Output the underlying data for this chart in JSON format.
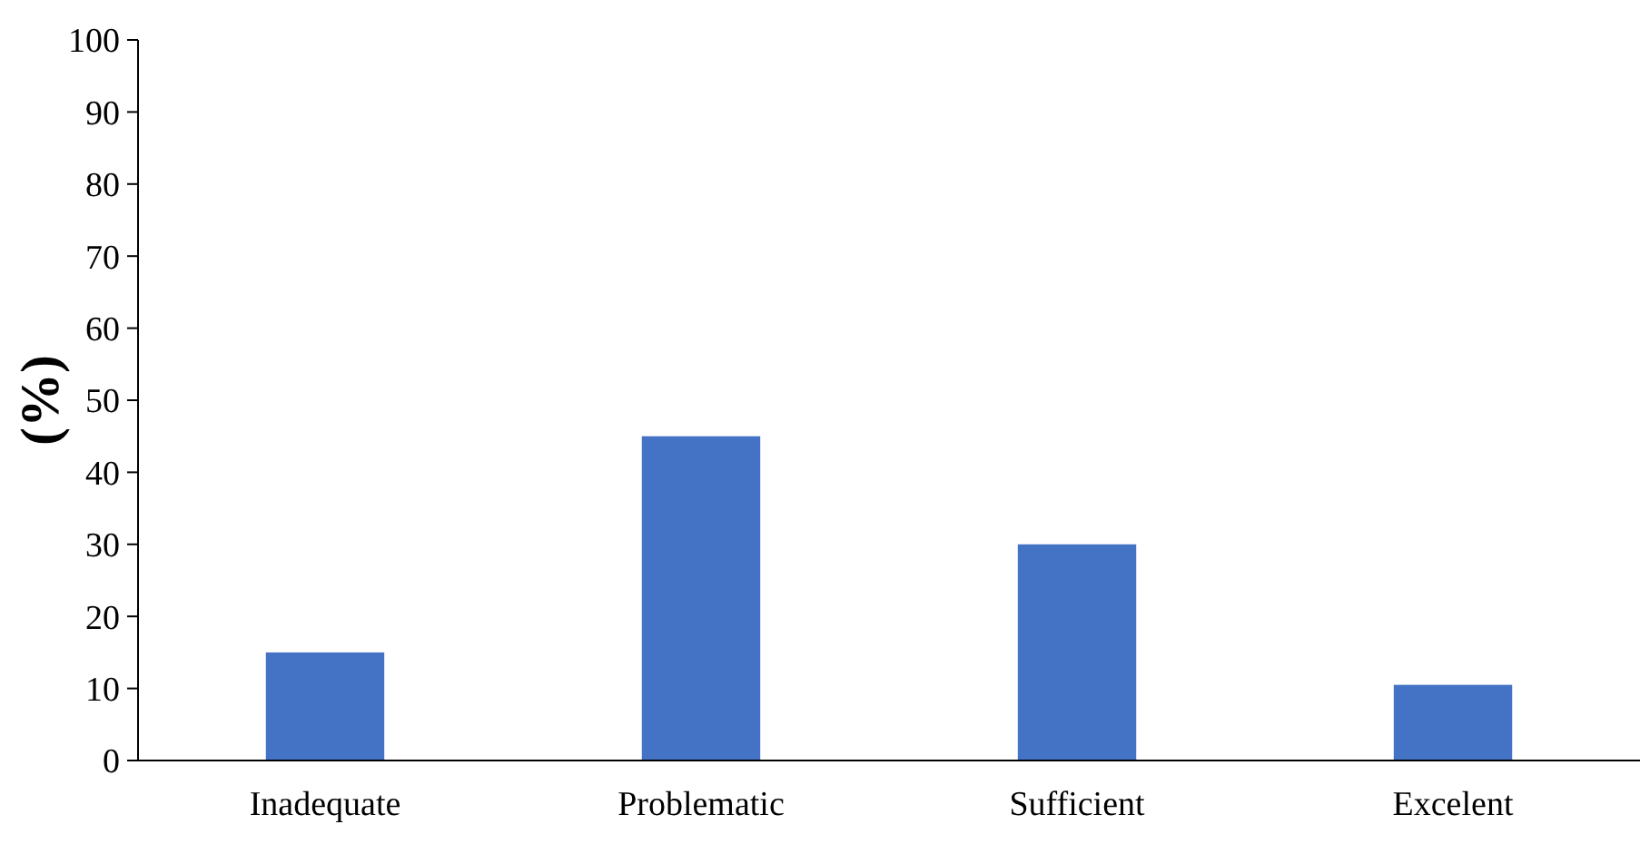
{
  "chart_data": {
    "type": "bar",
    "ylabel": "(%)",
    "categories": [
      "Inadequate",
      "Problematic",
      "Sufficient",
      "Excelent"
    ],
    "values": [
      15,
      45,
      30,
      10.5
    ],
    "color": "#4472c4",
    "ylim": [
      0,
      100
    ],
    "yticks": [
      0,
      10,
      20,
      30,
      40,
      50,
      60,
      70,
      80,
      90,
      100
    ],
    "grid": false
  }
}
